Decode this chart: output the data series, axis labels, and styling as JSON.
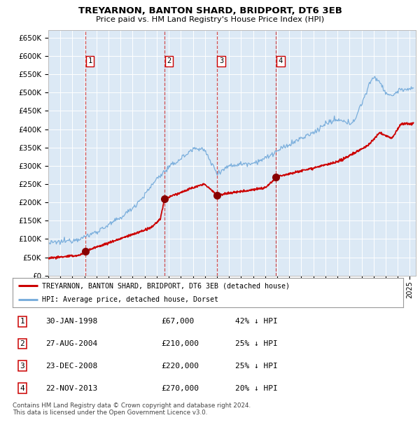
{
  "title": "TREYARNON, BANTON SHARD, BRIDPORT, DT6 3EB",
  "subtitle": "Price paid vs. HM Land Registry's House Price Index (HPI)",
  "ylim": [
    0,
    670000
  ],
  "xlim_start": 1995.0,
  "xlim_end": 2025.5,
  "background_color": "#ffffff",
  "plot_bg_color": "#dce9f5",
  "grid_color": "#c8d8e8",
  "yticks": [
    0,
    50000,
    100000,
    150000,
    200000,
    250000,
    300000,
    350000,
    400000,
    450000,
    500000,
    550000,
    600000,
    650000
  ],
  "ytick_labels": [
    "£0",
    "£50K",
    "£100K",
    "£150K",
    "£200K",
    "£250K",
    "£300K",
    "£350K",
    "£400K",
    "£450K",
    "£500K",
    "£550K",
    "£600K",
    "£650K"
  ],
  "xticks": [
    1995,
    1996,
    1997,
    1998,
    1999,
    2000,
    2001,
    2002,
    2003,
    2004,
    2005,
    2006,
    2007,
    2008,
    2009,
    2010,
    2011,
    2012,
    2013,
    2014,
    2015,
    2016,
    2017,
    2018,
    2019,
    2020,
    2021,
    2022,
    2023,
    2024,
    2025
  ],
  "sale_dates": [
    1998.08,
    2004.65,
    2008.98,
    2013.9
  ],
  "sale_prices": [
    67000,
    210000,
    220000,
    270000
  ],
  "sale_labels": [
    "1",
    "2",
    "3",
    "4"
  ],
  "red_line_color": "#cc0000",
  "blue_line_color": "#7aaedc",
  "sale_marker_color": "#880000",
  "dashed_line_color": "#cc3333",
  "legend_entries": [
    "TREYARNON, BANTON SHARD, BRIDPORT, DT6 3EB (detached house)",
    "HPI: Average price, detached house, Dorset"
  ],
  "table_entries": [
    {
      "num": "1",
      "date": "30-JAN-1998",
      "price": "£67,000",
      "pct": "42% ↓ HPI"
    },
    {
      "num": "2",
      "date": "27-AUG-2004",
      "price": "£210,000",
      "pct": "25% ↓ HPI"
    },
    {
      "num": "3",
      "date": "23-DEC-2008",
      "price": "£220,000",
      "pct": "25% ↓ HPI"
    },
    {
      "num": "4",
      "date": "22-NOV-2013",
      "price": "£270,000",
      "pct": "20% ↓ HPI"
    }
  ],
  "footnote": "Contains HM Land Registry data © Crown copyright and database right 2024.\nThis data is licensed under the Open Government Licence v3.0."
}
